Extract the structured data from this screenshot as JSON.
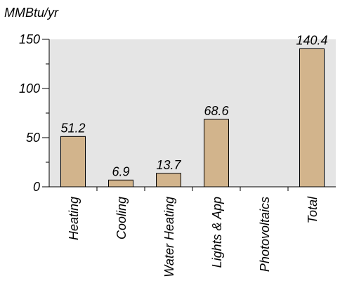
{
  "chart_data": {
    "type": "bar",
    "ylabel": "MMBtu/yr",
    "categories": [
      "Heating",
      "Cooling",
      "Water Heating",
      "Lights & App",
      "Photovoltaics",
      "Total"
    ],
    "values": [
      51.2,
      6.9,
      13.7,
      68.6,
      null,
      140.4
    ],
    "value_labels": [
      "51.2",
      "6.9",
      "13.7",
      "68.6",
      "",
      "140.4"
    ],
    "ylim": [
      0,
      150
    ],
    "major_ticks": [
      0,
      50,
      100,
      150
    ],
    "minor_ticks": [
      25,
      75,
      125
    ],
    "tick_labels": [
      "0",
      "50",
      "100",
      "150"
    ],
    "grid": false,
    "legend": "none",
    "colors": {
      "plot_background": "#e5e5e5",
      "bar_fill": "#d2b48c",
      "bar_stroke": "#000000"
    }
  }
}
